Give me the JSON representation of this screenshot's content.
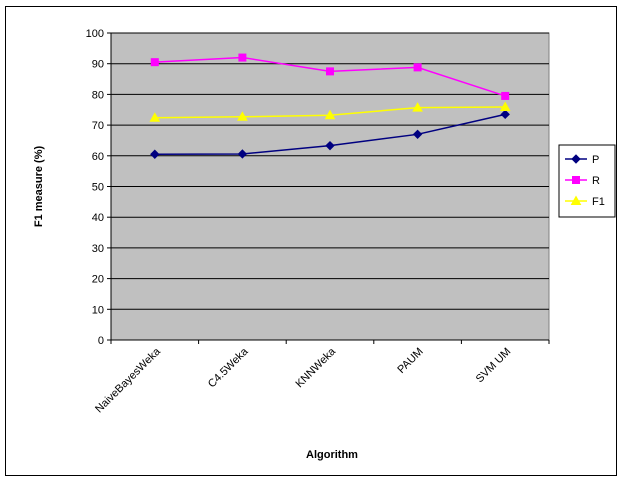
{
  "chart_data": {
    "type": "line",
    "categories": [
      "NaiveBayesWeka",
      "C4.5Weka",
      "KNNWeka",
      "PAUM",
      "SVM UM"
    ],
    "series": [
      {
        "name": "P",
        "values": [
          60.5,
          60.6,
          63.3,
          67.0,
          73.5
        ],
        "color": "#000080",
        "marker": "diamond"
      },
      {
        "name": "R",
        "values": [
          90.5,
          92.0,
          87.5,
          88.8,
          79.5
        ],
        "color": "#ff00ff",
        "marker": "square"
      },
      {
        "name": "F1",
        "values": [
          72.4,
          72.7,
          73.2,
          75.7,
          75.9
        ],
        "color": "#ffff00",
        "marker": "triangle"
      }
    ],
    "xlabel": "Algorithm",
    "ylabel": "F1 measure (%)",
    "ylim": [
      0,
      100
    ],
    "yticks": [
      0,
      10,
      20,
      30,
      40,
      50,
      60,
      70,
      80,
      90,
      100
    ],
    "grid": true,
    "plot_background": "#c0c0c0",
    "legend_position": "right"
  }
}
